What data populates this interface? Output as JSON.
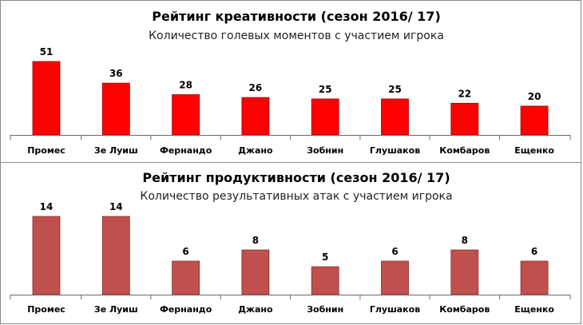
{
  "chart_data": [
    {
      "type": "bar",
      "title": "Рейтинг креативности (сезон 2016/ 17)",
      "subtitle": "Количество голевых моментов с участием игрока",
      "categories": [
        "Промес",
        "Зе Луиш",
        "Фернандо",
        "Джано",
        "Зобнин",
        "Глушаков",
        "Комбаров",
        "Ещенко"
      ],
      "values": [
        51,
        36,
        28,
        26,
        25,
        25,
        22,
        20
      ],
      "color": "#ff0000",
      "stroke": "#a00000",
      "ylim": [
        0,
        51
      ],
      "grid": false,
      "legend": "none"
    },
    {
      "type": "bar",
      "title": "Рейтинг продуктивности (сезон 2016/ 17)",
      "subtitle": "Количество результативных атак с участием игрока",
      "categories": [
        "Промес",
        "Зе Луиш",
        "Фернандо",
        "Джано",
        "Зобнин",
        "Глушаков",
        "Комбаров",
        "Ещенко"
      ],
      "values": [
        14,
        14,
        6,
        8,
        5,
        6,
        8,
        6
      ],
      "color": "#c0504d",
      "stroke": "#8b2a28",
      "ylim": [
        0,
        14
      ],
      "grid": false,
      "legend": "none"
    }
  ]
}
